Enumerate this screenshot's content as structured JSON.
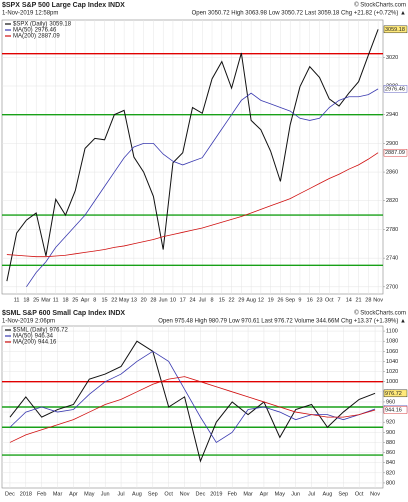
{
  "chart_data": [
    {
      "type": "line",
      "title": "$SPX S&P 500 Large Cap Index INDX",
      "copyright": "© StockCharts.com",
      "subtitle": "1-Nov-2019 12:58pm",
      "quote": "Open 3050.72 High 3063.98 Low 3050.72 Last 3059.18 Chg +21.82 (+0.72%) ▲",
      "categories": [
        null,
        "11",
        "18",
        "25",
        "Mar",
        "11",
        "18",
        "25",
        "Apr",
        "8",
        "15",
        "22",
        "May",
        "13",
        "20",
        "28",
        "Jun",
        "10",
        "17",
        "24",
        "Jul",
        "8",
        "15",
        "22",
        "29",
        "Aug",
        "12",
        "19",
        "26",
        "Sep",
        "9",
        "16",
        "23",
        "Oct",
        "7",
        "14",
        "21",
        "28",
        "Nov"
      ],
      "series": [
        {
          "name": "$SPX (Daily)",
          "legend_value": 3059.18,
          "color": "#111111",
          "values": [
            2708,
            2775,
            2793,
            2803,
            2743,
            2822,
            2800,
            2834,
            2893,
            2907,
            2905,
            2940,
            2946,
            2881,
            2860,
            2826,
            2752,
            2873,
            2887,
            2950,
            2942,
            2990,
            3014,
            2977,
            3026,
            2932,
            2919,
            2889,
            2847,
            2926,
            2979,
            3007,
            2992,
            2962,
            2952,
            2970,
            2986,
            3023,
            3059
          ]
        },
        {
          "name": "MA(50)",
          "legend_value": 2976.46,
          "color": "#3a3ab0",
          "values": [
            null,
            null,
            2700,
            2720,
            2735,
            2755,
            2770,
            2785,
            2800,
            2820,
            2840,
            2860,
            2880,
            2895,
            2900,
            2900,
            2885,
            2875,
            2870,
            2875,
            2880,
            2900,
            2920,
            2940,
            2960,
            2970,
            2960,
            2955,
            2950,
            2945,
            2935,
            2932,
            2935,
            2950,
            2960,
            2965,
            2965,
            2968,
            2976
          ]
        },
        {
          "name": "MA(200)",
          "legend_value": 2887.09,
          "color": "#d01010",
          "values": [
            2745,
            2744,
            2743,
            2742,
            2742,
            2743,
            2744,
            2746,
            2748,
            2750,
            2752,
            2755,
            2757,
            2760,
            2763,
            2766,
            2770,
            2773,
            2776,
            2779,
            2782,
            2786,
            2790,
            2794,
            2798,
            2803,
            2808,
            2813,
            2818,
            2823,
            2830,
            2837,
            2844,
            2851,
            2857,
            2864,
            2870,
            2878,
            2887
          ]
        }
      ],
      "ylim": [
        2690,
        3072
      ],
      "yticks": [
        2700,
        2740,
        2780,
        2820,
        2860,
        2900,
        2940,
        2980,
        3020
      ],
      "hlines": [
        {
          "value": 3025,
          "color": "#e00000"
        },
        {
          "value": 2940,
          "color": "#18a018"
        },
        {
          "value": 2800,
          "color": "#18a018"
        },
        {
          "value": 2730,
          "color": "#18a018"
        }
      ],
      "grid": true
    },
    {
      "type": "line",
      "title": "$SML S&P 600 Small Cap Index INDX",
      "copyright": "© StockCharts.com",
      "subtitle": "1-Nov-2019 2:06pm",
      "quote": "Open 975.48 High 980.79 Low 970.61 Last 976.72 Volume 344.66M Chg +13.37 (+1.39%) ▲",
      "categories": [
        "Dec",
        "2018",
        "Feb",
        "Mar",
        "Apr",
        "May",
        "Jun",
        "Jul",
        "Aug",
        "Sep",
        "Oct",
        "Nov",
        "Dec",
        "2019",
        "Feb",
        "Mar",
        "Apr",
        "May",
        "Jun",
        "Jul",
        "Aug",
        "Sep",
        "Oct",
        "Nov"
      ],
      "series": [
        {
          "name": "$SML (Daily)",
          "legend_value": 976.72,
          "color": "#111111",
          "values": [
            930,
            970,
            930,
            945,
            955,
            1005,
            1015,
            1030,
            1080,
            1060,
            950,
            970,
            843,
            920,
            960,
            935,
            960,
            890,
            945,
            955,
            910,
            940,
            965,
            977
          ]
        },
        {
          "name": "MA(50)",
          "legend_value": 946.34,
          "color": "#3a3ab0",
          "values": [
            910,
            940,
            950,
            940,
            945,
            975,
            1000,
            1015,
            1040,
            1060,
            1040,
            985,
            930,
            880,
            900,
            945,
            950,
            940,
            925,
            935,
            935,
            925,
            935,
            946
          ]
        },
        {
          "name": "MA(200)",
          "legend_value": 944.16,
          "color": "#d01010",
          "values": [
            880,
            895,
            905,
            915,
            925,
            940,
            955,
            965,
            980,
            995,
            1005,
            1010,
            1000,
            990,
            980,
            970,
            960,
            950,
            940,
            935,
            930,
            930,
            935,
            944
          ]
        }
      ],
      "ylim": [
        790,
        1110
      ],
      "yticks": [
        800,
        820,
        840,
        860,
        880,
        900,
        920,
        940,
        960,
        980,
        1000,
        1020,
        1040,
        1060,
        1080,
        1100
      ],
      "hlines": [
        {
          "value": 1000,
          "color": "#e00000"
        },
        {
          "value": 950,
          "color": "#18a018"
        },
        {
          "value": 910,
          "color": "#18a018"
        },
        {
          "value": 855,
          "color": "#18a018"
        }
      ],
      "grid": true
    }
  ]
}
